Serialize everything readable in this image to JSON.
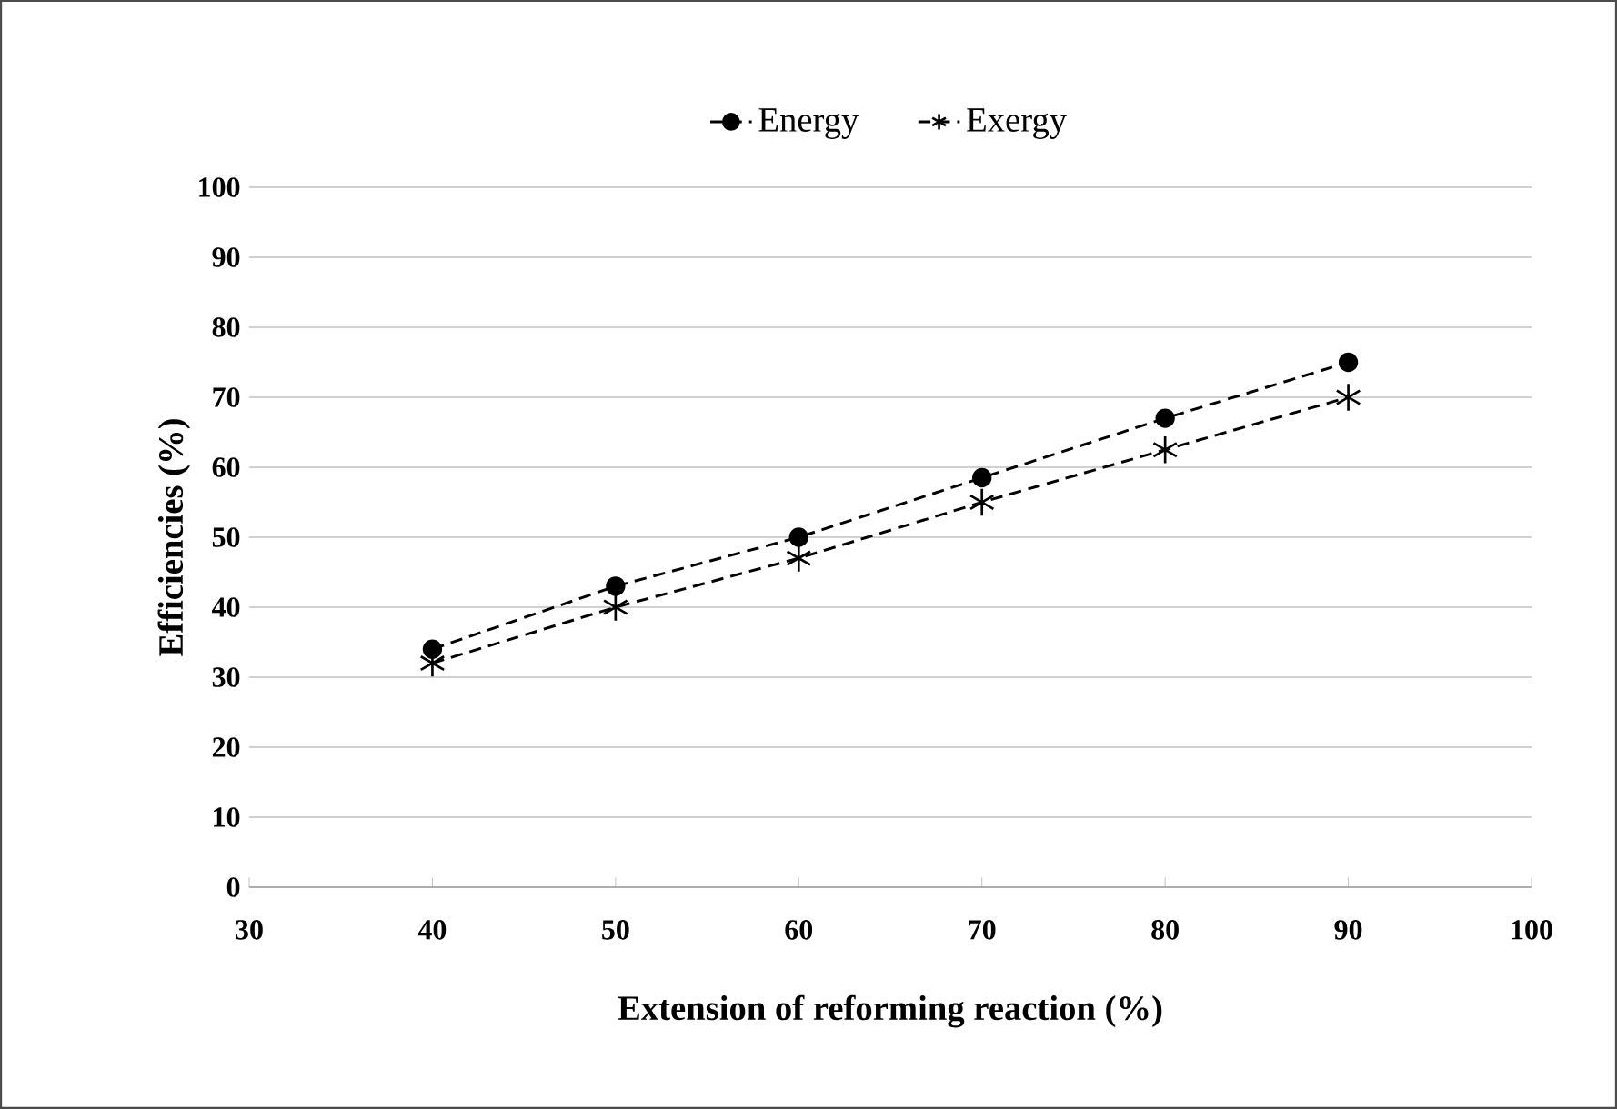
{
  "chart_data": {
    "type": "line",
    "xlabel": "Extension of reforming reaction (%)",
    "ylabel": "Efficiencies (%)",
    "x": [
      40,
      50,
      60,
      70,
      80,
      90
    ],
    "series": [
      {
        "name": "Energy",
        "color": "#000000",
        "marker": "circle",
        "values": [
          34,
          43,
          50,
          58.5,
          67,
          75
        ]
      },
      {
        "name": "Exergy",
        "color": "#000000",
        "marker": "cross",
        "values": [
          32,
          40,
          47,
          55,
          62.5,
          70
        ]
      }
    ],
    "xlim": [
      30,
      100
    ],
    "xticks": [
      30,
      40,
      50,
      60,
      70,
      80,
      90,
      100
    ],
    "ylim": [
      0,
      100
    ],
    "yticks": [
      0,
      10,
      20,
      30,
      40,
      50,
      60,
      70,
      80,
      90,
      100
    ],
    "grid": "y",
    "legend": "top",
    "line_style": "dashed"
  }
}
